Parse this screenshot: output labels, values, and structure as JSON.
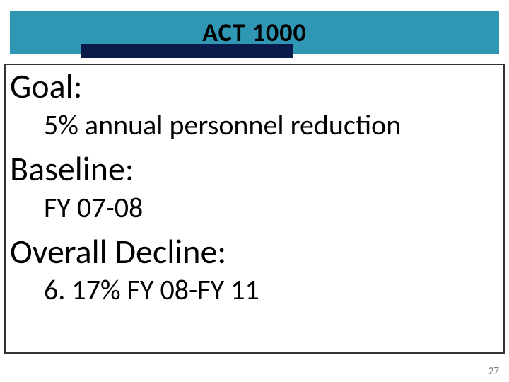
{
  "slide": {
    "title": "ACT 1000",
    "banner_bg": "#2f96b4",
    "banner_underlay": "#0a1a4a",
    "title_color": "#000000",
    "title_fontsize": 36,
    "border_color": "#333333",
    "background": "#ffffff",
    "sections": {
      "goal": {
        "label": "Goal:",
        "value": "5% annual personnel reduction"
      },
      "baseline": {
        "label": "Baseline:",
        "value": "FY 07-08"
      },
      "decline": {
        "label": "Overall Decline:",
        "value": "6. 17% FY 08-FY 11"
      }
    },
    "label_fontsize": 48,
    "value_fontsize": 40,
    "text_color": "#000000",
    "page_number": "27",
    "page_number_color": "#7a7a7a"
  }
}
